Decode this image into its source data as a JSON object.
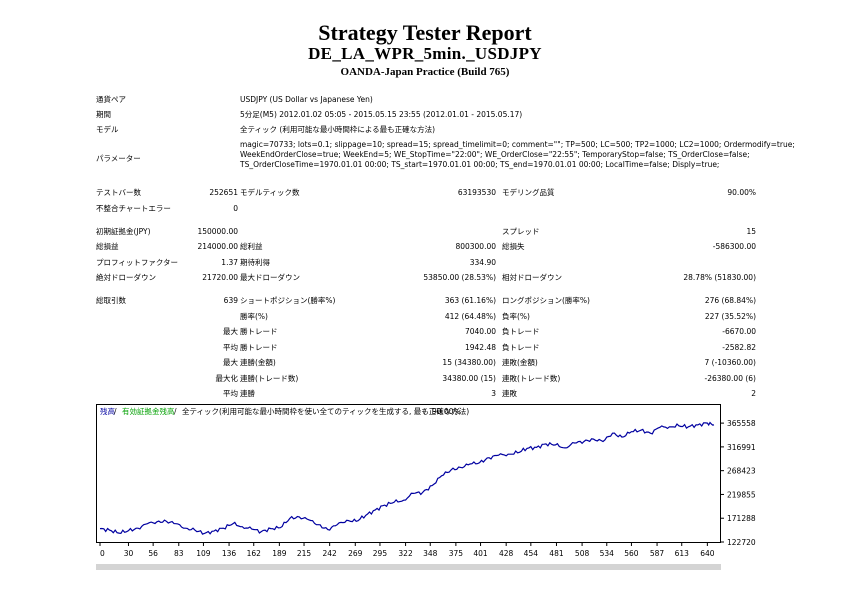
{
  "header": {
    "title": "Strategy Tester Report",
    "subtitle": "DE_LA_WPR_5min._USDJPY",
    "server": "OANDA-Japan Practice (Build 765)"
  },
  "info": {
    "symbol_label": "通貨ペア",
    "symbol_value": "USDJPY (US Dollar vs Japanese Yen)",
    "period_label": "期間",
    "period_value": "5分足(M5) 2012.01.02 05:05 - 2015.05.15 23:55 (2012.01.01 - 2015.05.17)",
    "model_label": "モデル",
    "model_value": "全ティック (利用可能な最小時間枠による最も正確な方法)",
    "params_label": "パラメーター",
    "params_value": "magic=70733; lots=0.1; slippage=10; spread=15; spread_timelimit=0; comment=\"\"; TP=500; LC=500; TP2=1000; LC2=1000; Ordermodify=true; WeekEndOrderClose=true; WeekEnd=5; WE_StopTime=\"22:00\"; WE_OrderClose=\"22:55\"; TemporaryStop=false; TS_OrderClose=false; TS_OrderCloseTime=1970.01.01 00:00; TS_start=1970.01.01 00:00; TS_end=1970.01.01 00:00; LocalTime=false; Disply=true;"
  },
  "stats": {
    "bars_label": "テストバー数",
    "bars_value": "252651",
    "ticks_label": "モデルティック数",
    "ticks_value": "63193530",
    "quality_label": "モデリング品質",
    "quality_value": "90.00%",
    "mismatch_label": "不整合チャートエラー",
    "mismatch_value": "0",
    "deposit_label": "初期証拠金(JPY)",
    "deposit_value": "150000.00",
    "spread_label": "スプレッド",
    "spread_value": "15",
    "net_label": "総損益",
    "net_value": "214000.00",
    "gross_profit_label": "総利益",
    "gross_profit_value": "800300.00",
    "gross_loss_label": "総損失",
    "gross_loss_value": "-586300.00",
    "pf_label": "プロフィットファクター",
    "pf_value": "1.37",
    "payoff_label": "期待利得",
    "payoff_value": "334.90",
    "abs_dd_label": "絶対ドローダウン",
    "abs_dd_value": "21720.00",
    "max_dd_label": "最大ドローダウン",
    "max_dd_value": "53850.00 (28.53%)",
    "rel_dd_label": "相対ドローダウン",
    "rel_dd_value": "28.78% (51830.00)",
    "trades_label": "総取引数",
    "trades_value": "639",
    "short_label": "ショートポジション(勝率%)",
    "short_value": "363 (61.16%)",
    "long_label": "ロングポジション(勝率%)",
    "long_value": "276 (68.84%)",
    "win_pct_label": "勝率(%)",
    "win_pct_value": "412 (64.48%)",
    "loss_pct_label": "負率(%)",
    "loss_pct_value": "227 (35.52%)",
    "max_label": "最大",
    "largest_win_label": "勝トレード",
    "largest_win_value": "7040.00",
    "largest_loss_label": "負トレード",
    "largest_loss_value": "-6670.00",
    "avg_label": "平均",
    "avg_win_label": "勝トレード",
    "avg_win_value": "1942.48",
    "avg_loss_label": "負トレード",
    "avg_loss_value": "-2582.82",
    "max2_label": "最大",
    "cons_wins_label": "連勝(金額)",
    "cons_wins_value": "15 (34380.00)",
    "cons_losses_label": "連敗(金額)",
    "cons_losses_value": "7 (-10360.00)",
    "maximal_label": "最大化",
    "cons_profit_label": "連勝(トレード数)",
    "cons_profit_value": "34380.00 (15)",
    "cons_loss_label": "連敗(トレード数)",
    "cons_loss_value": "-26380.00 (6)",
    "avg2_label": "平均",
    "avg_cons_wins_label": "連勝",
    "avg_cons_wins_value": "3",
    "avg_cons_losses_label": "連敗",
    "avg_cons_losses_value": "2"
  },
  "chart_data": {
    "type": "line",
    "legend": {
      "balance": "残高",
      "sep1": " / ",
      "equity": "有効証拠金残高",
      "sep2": " / ",
      "model": "全ティック(利用可能な最小時間枠を使い全てのティックを生成する, 最も正確な方法)",
      "sep3": " / ",
      "quality": "90.00%"
    },
    "y_ticks": [
      "365558",
      "316991",
      "268423",
      "219855",
      "171288",
      "122720"
    ],
    "y_tick_values": [
      365558,
      316991,
      268423,
      219855,
      171288,
      122720
    ],
    "x_ticks": [
      "0",
      "30",
      "56",
      "83",
      "109",
      "136",
      "162",
      "189",
      "215",
      "242",
      "269",
      "295",
      "322",
      "348",
      "375",
      "401",
      "428",
      "454",
      "481",
      "508",
      "534",
      "560",
      "587",
      "613",
      "640"
    ],
    "x_tick_values": [
      0,
      30,
      56,
      83,
      109,
      136,
      162,
      189,
      215,
      242,
      269,
      295,
      322,
      348,
      375,
      401,
      428,
      454,
      481,
      508,
      534,
      560,
      587,
      613,
      640
    ],
    "xlim": [
      0,
      647
    ],
    "ylim": [
      122720,
      376000
    ],
    "series": [
      {
        "color": "#0000a0",
        "x": [
          0,
          10,
          20,
          30,
          40,
          50,
          60,
          70,
          80,
          90,
          100,
          110,
          120,
          130,
          140,
          150,
          160,
          170,
          180,
          190,
          200,
          210,
          220,
          230,
          240,
          250,
          260,
          270,
          280,
          290,
          300,
          310,
          320,
          330,
          340,
          350,
          360,
          370,
          380,
          390,
          400,
          410,
          420,
          430,
          440,
          450,
          460,
          470,
          480,
          490,
          500,
          510,
          520,
          530,
          540,
          550,
          560,
          570,
          580,
          590,
          600,
          610,
          620,
          630,
          640,
          647
        ],
        "y": [
          150000,
          147000,
          141000,
          146000,
          151000,
          160000,
          164000,
          165000,
          160000,
          151000,
          147000,
          140000,
          145000,
          151000,
          160000,
          154000,
          149000,
          144000,
          150000,
          152000,
          171000,
          174000,
          168000,
          158000,
          148000,
          158000,
          167000,
          165000,
          177000,
          188000,
          198000,
          204000,
          208000,
          222000,
          224000,
          238000,
          258000,
          270000,
          275000,
          282000,
          285000,
          295000,
          300000,
          302000,
          305000,
          314000,
          316000,
          323000,
          321000,
          315000,
          325000,
          328000,
          333000,
          328000,
          345000,
          337000,
          348000,
          351000,
          345000,
          357000,
          358000,
          360000,
          358000,
          362000,
          365558,
          362000
        ]
      }
    ]
  }
}
